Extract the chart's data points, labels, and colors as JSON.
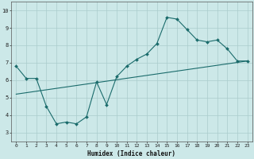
{
  "xlabel": "Humidex (Indice chaleur)",
  "ylabel": "",
  "bg_color": "#cce8e8",
  "grid_color": "#aacccc",
  "line_color": "#1a6b6b",
  "xlim": [
    -0.5,
    23.5
  ],
  "ylim": [
    2.5,
    10.5
  ],
  "xticks": [
    0,
    1,
    2,
    3,
    4,
    5,
    6,
    7,
    8,
    9,
    10,
    11,
    12,
    13,
    14,
    15,
    16,
    17,
    18,
    19,
    20,
    21,
    22,
    23
  ],
  "yticks": [
    3,
    4,
    5,
    6,
    7,
    8,
    9,
    10
  ],
  "curve_x": [
    0,
    1,
    2,
    3,
    4,
    5,
    6,
    7,
    8,
    9,
    10,
    11,
    12,
    13,
    14,
    15,
    16,
    17,
    18,
    19,
    20,
    21,
    22,
    23
  ],
  "curve_y": [
    6.8,
    6.1,
    6.1,
    4.5,
    3.5,
    3.6,
    3.5,
    3.9,
    5.9,
    4.6,
    6.2,
    6.8,
    7.2,
    7.5,
    8.1,
    9.6,
    9.5,
    8.9,
    8.3,
    8.2,
    8.3,
    7.8,
    7.1,
    7.1
  ],
  "line_x": [
    0,
    23
  ],
  "line_y": [
    5.2,
    7.1
  ]
}
